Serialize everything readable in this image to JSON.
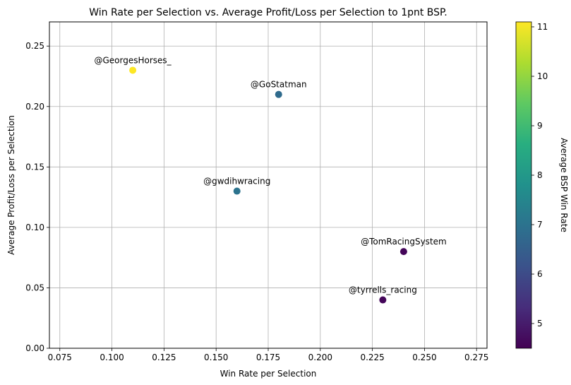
{
  "chart_data": {
    "type": "scatter",
    "title": "Win Rate per Selection vs. Average Profit/Loss per Selection to 1pnt BSP.",
    "xlabel": "Win Rate per Selection",
    "ylabel": "Average Profit/Loss per Selection",
    "xlim": [
      0.07,
      0.28
    ],
    "ylim": [
      0.0,
      0.27
    ],
    "xticks": [
      0.075,
      0.1,
      0.125,
      0.15,
      0.175,
      0.2,
      0.225,
      0.25,
      0.275
    ],
    "xtick_labels": [
      "0.075",
      "0.100",
      "0.125",
      "0.150",
      "0.175",
      "0.200",
      "0.225",
      "0.250",
      "0.275"
    ],
    "yticks": [
      0.0,
      0.05,
      0.1,
      0.15,
      0.2,
      0.25
    ],
    "ytick_labels": [
      "0.00",
      "0.05",
      "0.10",
      "0.15",
      "0.20",
      "0.25"
    ],
    "grid": true,
    "colorbar": {
      "label": "Average BSP Win Rate",
      "colormap": "viridis",
      "range": [
        4.5,
        11.1
      ],
      "ticks": [
        5,
        6,
        7,
        8,
        9,
        10,
        11
      ],
      "tick_labels": [
        "5",
        "6",
        "7",
        "8",
        "9",
        "10",
        "11"
      ]
    },
    "points": [
      {
        "label": "@GeorgesHorses_",
        "x": 0.11,
        "y": 0.23,
        "c": 11.1
      },
      {
        "label": "@GoStatman",
        "x": 0.18,
        "y": 0.21,
        "c": 6.8
      },
      {
        "label": "@gwdihwracing",
        "x": 0.16,
        "y": 0.13,
        "c": 7.0
      },
      {
        "label": "@TomRacingSystem",
        "x": 0.24,
        "y": 0.08,
        "c": 4.6
      },
      {
        "label": "@tyrrells_racing",
        "x": 0.23,
        "y": 0.04,
        "c": 4.6
      }
    ]
  }
}
